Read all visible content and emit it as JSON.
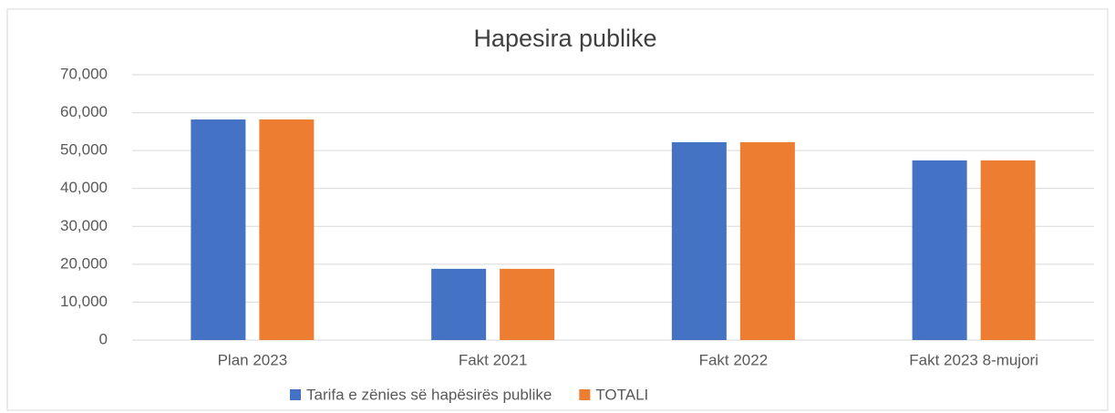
{
  "chart_data": {
    "type": "bar",
    "title": "Hapesira publike",
    "categories": [
      "Plan 2023",
      "Fakt 2021",
      "Fakt 2022",
      "Fakt 2023 8-mujori"
    ],
    "series": [
      {
        "name": "Tarifa e zënies së hapësirës publike",
        "color": "#4472c4",
        "values": [
          58200,
          18800,
          52200,
          47400
        ]
      },
      {
        "name": "TOTALI",
        "color": "#ed7d31",
        "values": [
          58200,
          18800,
          52200,
          47400
        ]
      }
    ],
    "ylim": [
      0,
      70000
    ],
    "yticks": [
      0,
      {
        "value": 10000,
        "label": "10,000"
      },
      {
        "value": 20000,
        "label": "20,000"
      },
      {
        "value": 30000,
        "label": "30,000"
      },
      {
        "value": 40000,
        "label": "40,000"
      },
      {
        "value": 50000,
        "label": "50,000"
      },
      {
        "value": 60000,
        "label": "60,000"
      },
      {
        "value": 70000,
        "label": "70,000"
      }
    ],
    "grid": true,
    "legend": "bottom"
  }
}
